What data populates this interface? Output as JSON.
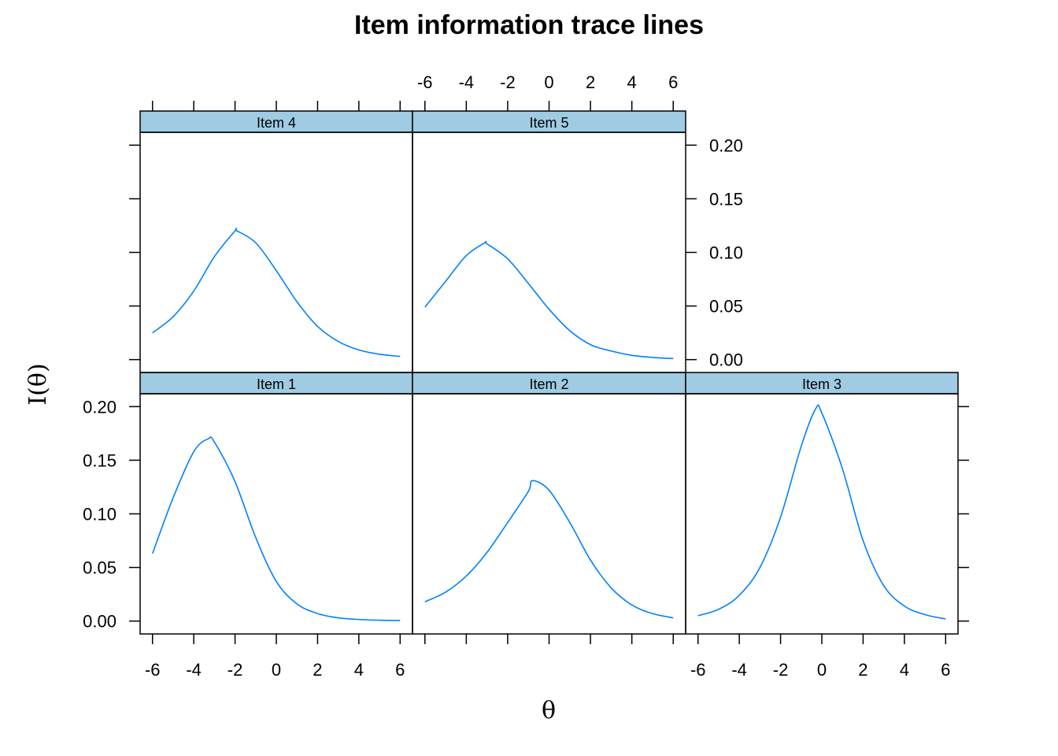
{
  "title": "Item information trace lines",
  "xlabel": "θ",
  "ylabel": "I(θ)",
  "colors": {
    "strip": "#9fcbe3",
    "line": "#0080ff",
    "frame": "#000000"
  },
  "chart_data": {
    "type": "line",
    "layout": "lattice 3x2, bottom row: Item 1, Item 2, Item 3; top row: Item 4, Item 5",
    "xlim": [
      -6.6,
      6.6
    ],
    "ylim": [
      -0.012,
      0.212
    ],
    "x_ticks": [
      -6,
      -4,
      -2,
      0,
      2,
      4,
      6
    ],
    "y_ticks": [
      0.0,
      0.05,
      0.1,
      0.15,
      0.2
    ],
    "x_tick_labels": [
      "-6",
      "-4",
      "-2",
      "0",
      "2",
      "4",
      "6"
    ],
    "y_tick_labels": [
      "0.00",
      "0.05",
      "0.10",
      "0.15",
      "0.20"
    ],
    "x": [
      -6,
      -5,
      -4,
      -3.3,
      -3,
      -2,
      -1,
      0,
      1,
      2,
      3,
      4,
      5,
      6
    ],
    "panels": [
      {
        "name": "Item 1",
        "x": [
          -6,
          -5,
          -4,
          -3.3,
          -3,
          -2,
          -1,
          0,
          1,
          2,
          3,
          4,
          5,
          6
        ],
        "values": [
          0.063,
          0.115,
          0.158,
          0.17,
          0.167,
          0.13,
          0.078,
          0.037,
          0.016,
          0.007,
          0.003,
          0.0015,
          0.0008,
          0.0005
        ]
      },
      {
        "name": "Item 2",
        "x": [
          -6,
          -5,
          -4,
          -3,
          -2,
          -1,
          -0.8,
          0,
          1,
          2,
          3,
          4,
          5,
          6
        ],
        "values": [
          0.018,
          0.027,
          0.042,
          0.064,
          0.092,
          0.121,
          0.131,
          0.122,
          0.092,
          0.057,
          0.031,
          0.015,
          0.007,
          0.003
        ]
      },
      {
        "name": "Item 3",
        "x": [
          -6,
          -5,
          -4,
          -3,
          -2,
          -1,
          -0.3,
          0,
          1,
          2,
          3,
          4,
          5,
          6
        ],
        "values": [
          0.005,
          0.011,
          0.024,
          0.05,
          0.097,
          0.163,
          0.198,
          0.194,
          0.142,
          0.075,
          0.033,
          0.014,
          0.006,
          0.002
        ]
      },
      {
        "name": "Item 4",
        "x": [
          -6,
          -5,
          -4,
          -3,
          -2,
          -1.9,
          -1,
          0,
          1,
          2,
          3,
          4,
          5,
          6
        ],
        "values": [
          0.025,
          0.04,
          0.064,
          0.096,
          0.12,
          0.12,
          0.109,
          0.083,
          0.054,
          0.031,
          0.017,
          0.009,
          0.005,
          0.003
        ]
      },
      {
        "name": "Item 5",
        "x": [
          -6,
          -5,
          -4,
          -3.1,
          -3,
          -2,
          -1,
          0,
          1,
          2,
          3,
          4,
          5,
          6
        ],
        "values": [
          0.049,
          0.073,
          0.097,
          0.109,
          0.108,
          0.094,
          0.071,
          0.047,
          0.027,
          0.014,
          0.008,
          0.004,
          0.002,
          0.001
        ]
      }
    ]
  }
}
